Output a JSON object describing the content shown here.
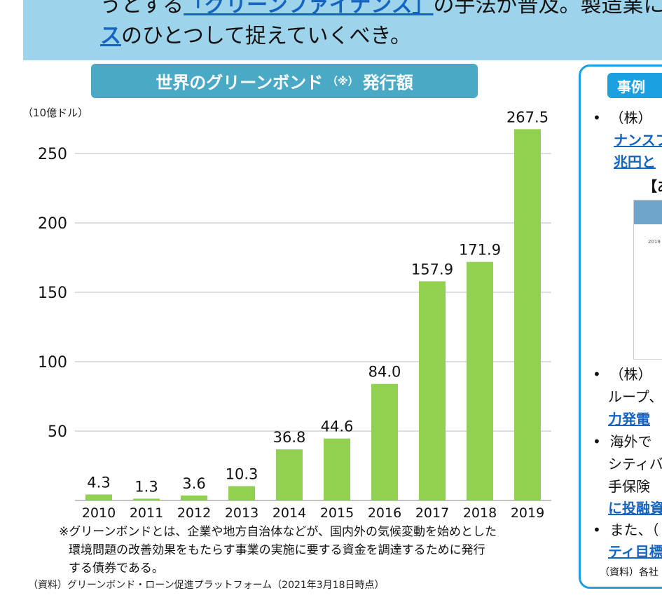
{
  "banner": {
    "line1_pre": "うとする",
    "line1_link": "「グリーンファイナンス」",
    "line1_post": "の手法が普及。製造業にお",
    "line2_link": "ス",
    "line2_post": "のひとつして捉えていくべき。"
  },
  "chart_header": {
    "title_a": "世界のグリーンボンド",
    "title_mark": "（※）",
    "title_b": "発行額"
  },
  "chart_data": {
    "type": "bar",
    "title": "世界のグリーンボンド（※）発行額",
    "ylabel": "（10億ドル）",
    "categories": [
      "2010",
      "2011",
      "2012",
      "2013",
      "2014",
      "2015",
      "2016",
      "2017",
      "2018",
      "2019"
    ],
    "values": [
      4.3,
      1.3,
      3.6,
      10.3,
      36.8,
      44.6,
      84.0,
      157.9,
      171.9,
      267.5
    ],
    "data_labels": [
      "4.3",
      "1.3",
      "3.6",
      "10.3",
      "36.8",
      "44.6",
      "84.0",
      "157.9",
      "171.9",
      "267.5"
    ],
    "yticks": [
      "50",
      "100",
      "150",
      "200",
      "250"
    ],
    "ylim": [
      0,
      270
    ],
    "grid": true,
    "bar_color": "#92d050"
  },
  "notes": {
    "line1": "※グリーンボンドとは、企業や地方自治体などが、国内外の気候変動を始めとした",
    "line2": "環境問題の改善効果をもたらす事業の実施に要する資金を調達するために発行",
    "line3": "する債券である。",
    "source": "（資料）グリーンボンド・ローン促進プラットフォーム（2021年3月18日時点）"
  },
  "case": {
    "tag": "事例",
    "bullet": "•",
    "l1": "（株）",
    "l2": "ナンスフ",
    "l3": "兆円と",
    "l4": "【あ",
    "img_year": "2019",
    "l5": "（株）",
    "l6": "ループ、",
    "l7": "力発電",
    "l8": "海外で",
    "l9": "シティバ",
    "l10": "手保険",
    "l11": "に投融資",
    "l12": "また、（",
    "l13": "ティ目標",
    "source": "（資料）各社"
  }
}
